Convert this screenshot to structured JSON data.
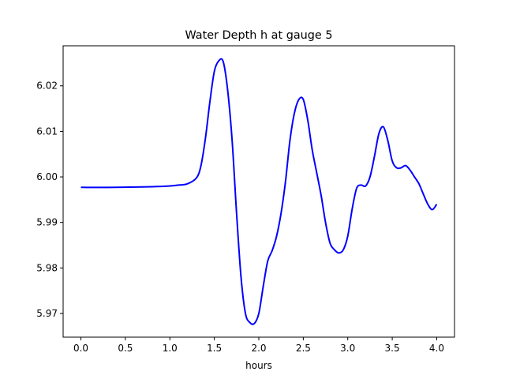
{
  "chart_data": {
    "type": "line",
    "title": "Water Depth h at gauge 5",
    "xlabel": "hours",
    "ylabel": "",
    "xlim": [
      -0.2,
      4.2
    ],
    "ylim": [
      5.9648,
      6.0288
    ],
    "xticks": [
      0.0,
      0.5,
      1.0,
      1.5,
      2.0,
      2.5,
      3.0,
      3.5,
      4.0
    ],
    "xtick_labels": [
      "0.0",
      "0.5",
      "1.0",
      "1.5",
      "2.0",
      "2.5",
      "3.0",
      "3.5",
      "4.0"
    ],
    "yticks": [
      5.97,
      5.98,
      5.99,
      6.0,
      6.01,
      6.02
    ],
    "ytick_labels": [
      "5.97",
      "5.98",
      "5.99",
      "6.00",
      "6.01",
      "6.02"
    ],
    "grid": false,
    "series": [
      {
        "color": "#0000ff",
        "x": [
          0.0,
          0.4,
          0.9,
          1.1,
          1.2,
          1.3,
          1.35,
          1.4,
          1.45,
          1.5,
          1.55,
          1.6,
          1.65,
          1.7,
          1.75,
          1.8,
          1.85,
          1.9,
          1.95,
          2.0,
          2.05,
          2.1,
          2.15,
          2.2,
          2.25,
          2.3,
          2.35,
          2.4,
          2.45,
          2.5,
          2.55,
          2.6,
          2.65,
          2.7,
          2.75,
          2.8,
          2.85,
          2.9,
          2.95,
          3.0,
          3.05,
          3.1,
          3.15,
          3.2,
          3.25,
          3.3,
          3.35,
          3.4,
          3.45,
          3.5,
          3.55,
          3.6,
          3.65,
          3.7,
          3.75,
          3.8,
          3.85,
          3.9,
          3.95,
          4.0
        ],
        "y": [
          5.9977,
          5.9977,
          5.9979,
          5.9982,
          5.9985,
          5.9998,
          6.0025,
          6.0085,
          6.0165,
          6.0232,
          6.0255,
          6.0253,
          6.019,
          6.008,
          5.992,
          5.978,
          5.97,
          5.968,
          5.9678,
          5.97,
          5.976,
          5.9815,
          5.9838,
          5.987,
          5.992,
          5.999,
          6.008,
          6.014,
          6.017,
          6.017,
          6.0125,
          6.006,
          6.001,
          5.996,
          5.99,
          5.9855,
          5.984,
          5.9833,
          5.984,
          5.987,
          5.993,
          5.9975,
          5.9982,
          5.998,
          6.0,
          6.0045,
          6.0095,
          6.011,
          6.008,
          6.0035,
          6.002,
          6.002,
          6.0025,
          6.0015,
          6.0,
          5.9985,
          5.9962,
          5.994,
          5.9928,
          5.994
        ]
      }
    ]
  }
}
